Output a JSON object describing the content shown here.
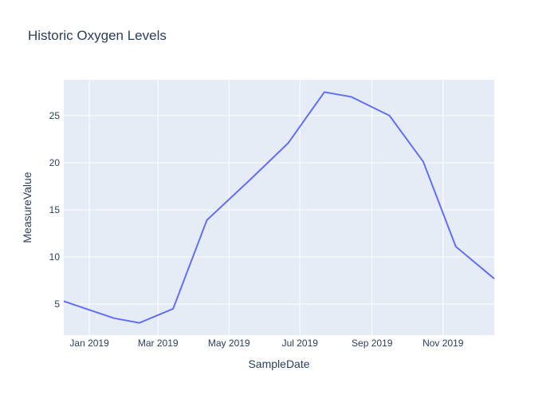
{
  "chart_data": {
    "type": "line",
    "title": "Historic Oxygen Levels",
    "xlabel": "SampleDate",
    "ylabel": "MeasureValue",
    "x_ticks": [
      "Jan 2019",
      "Mar 2019",
      "May 2019",
      "Jul 2019",
      "Sep 2019",
      "Nov 2019"
    ],
    "y_ticks": [
      5,
      10,
      15,
      20,
      25
    ],
    "xlim": [
      "2018-12-10",
      "2019-12-15"
    ],
    "ylim": [
      1.7,
      28.8
    ],
    "grid": true,
    "legend": "none",
    "series": [
      {
        "color": "#636efa",
        "x": [
          "2018-12-10",
          "2019-01-22",
          "2019-02-13",
          "2019-03-14",
          "2019-04-12",
          "2019-05-20",
          "2019-06-21",
          "2019-07-22",
          "2019-08-14",
          "2019-09-16",
          "2019-10-15",
          "2019-11-12",
          "2019-12-15"
        ],
        "y": [
          5.3,
          3.5,
          3.0,
          4.5,
          13.9,
          18.3,
          22.1,
          27.5,
          27.0,
          25.0,
          20.1,
          11.1,
          7.7
        ]
      }
    ]
  },
  "colors": {
    "plot_bg": "#e5ecf6",
    "grid": "#ffffff",
    "text": "#2a3f5f",
    "line": "#636efa"
  }
}
